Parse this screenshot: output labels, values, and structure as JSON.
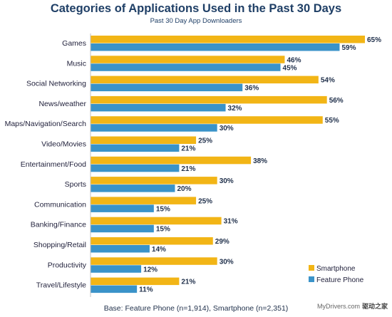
{
  "chart_data": {
    "type": "bar",
    "orientation": "horizontal",
    "title": "Categories of Applications Used in the Past 30 Days",
    "subtitle": "Past 30 Day App Downloaders",
    "categories": [
      "Games",
      "Music",
      "Social Networking",
      "News/weather",
      "Maps/Navigation/Search",
      "Video/Movies",
      "Entertainment/Food",
      "Sports",
      "Communication",
      "Banking/Finance",
      "Shopping/Retail",
      "Productivity",
      "Travel/Lifestyle"
    ],
    "series": [
      {
        "name": "Smartphone",
        "color": "#f2b516",
        "values": [
          65,
          46,
          54,
          56,
          55,
          25,
          38,
          30,
          25,
          31,
          29,
          30,
          21
        ]
      },
      {
        "name": "Feature Phone",
        "color": "#3a93c9",
        "values": [
          59,
          45,
          36,
          32,
          30,
          21,
          21,
          20,
          15,
          15,
          14,
          12,
          11
        ]
      }
    ],
    "value_suffix": "%",
    "xlim": [
      0,
      65
    ],
    "grid": false,
    "legend": "bottom-right"
  },
  "footnote": "Base: Feature Phone (n=1,914), Smartphone (n=2,351)",
  "watermark": {
    "site": "MyDrivers.com",
    "cn": "驱动之家"
  }
}
